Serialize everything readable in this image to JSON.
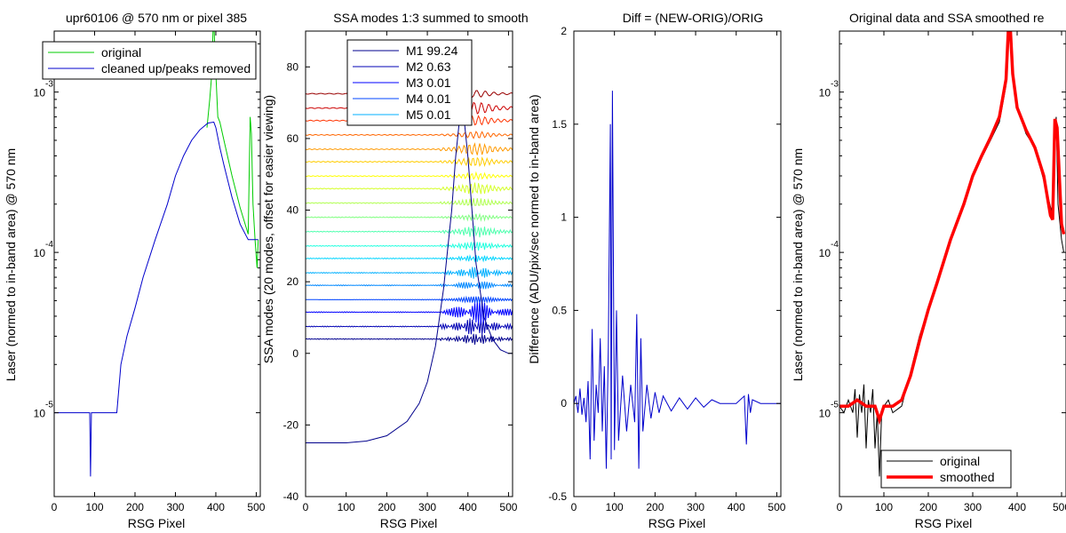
{
  "chart_data": [
    {
      "type": "line",
      "title": "upr60106 @ 570 nm or pixel 385",
      "xlabel": "RSG Pixel",
      "ylabel": "Laser (normed to in-band area) @ 570 nm",
      "xlim": [
        0,
        510
      ],
      "ylim": [
        3e-06,
        0.0024
      ],
      "yscale": "log",
      "xticks": [
        0,
        100,
        200,
        300,
        400,
        500
      ],
      "ytick_labels": [
        {
          "base": "10",
          "exp": "-5",
          "value": 1e-05
        },
        {
          "base": "10",
          "exp": "-4",
          "value": 0.0001
        },
        {
          "base": "10",
          "exp": "-3",
          "value": 0.001
        }
      ],
      "legend": {
        "position": "top-left",
        "entries": [
          "original",
          "cleaned up/peaks removed"
        ]
      },
      "series": [
        {
          "name": "original",
          "color": "#00cc00",
          "x": [
            378,
            385,
            390,
            393,
            396,
            400,
            405,
            410,
            420,
            440,
            460,
            480,
            485,
            488,
            492,
            497,
            502,
            505
          ],
          "y": [
            0.0006,
            0.0009,
            0.0013,
            0.0024,
            0.0024,
            0.0013,
            0.0007,
            0.00065,
            0.0005,
            0.0003,
            0.00019,
            0.00013,
            0.0007,
            0.00055,
            0.0002,
            0.00012,
            8e-05,
            0.00012
          ]
        },
        {
          "name": "cleaned up/peaks removed",
          "color": "#0000cc",
          "x": [
            0,
            15,
            25,
            35,
            45,
            50,
            60,
            70,
            80,
            88,
            90,
            92,
            95,
            100,
            110,
            120,
            140,
            155,
            165,
            180,
            200,
            220,
            250,
            280,
            300,
            320,
            340,
            360,
            380,
            395,
            400,
            410,
            420,
            440,
            460,
            480,
            490,
            500,
            505
          ],
          "y": [
            1e-05,
            1e-05,
            1e-05,
            1e-05,
            1e-05,
            1e-05,
            1e-05,
            1e-05,
            1e-05,
            1e-05,
            4e-06,
            1e-05,
            1e-05,
            1e-05,
            1e-05,
            1e-05,
            1e-05,
            1e-05,
            2e-05,
            3e-05,
            4.5e-05,
            7e-05,
            0.00012,
            0.0002,
            0.0003,
            0.0004,
            0.0005,
            0.00058,
            0.00064,
            0.00065,
            0.0006,
            0.00045,
            0.00035,
            0.00022,
            0.00015,
            0.00012,
            0.00012,
            0.00012,
            0.00012
          ]
        }
      ]
    },
    {
      "type": "line",
      "title": "SSA modes 1:3 summed to smooth",
      "xlabel": "RSG Pixel",
      "ylabel": "SSA modes (20 modes, offset for easier viewing)",
      "xlim": [
        0,
        510
      ],
      "ylim": [
        -40,
        90
      ],
      "xticks": [
        0,
        100,
        200,
        300,
        400,
        500
      ],
      "yticks": [
        -40,
        -20,
        0,
        20,
        40,
        60,
        80
      ],
      "legend": {
        "position": "top-center",
        "entries": [
          "M1 99.24",
          "M2 0.63",
          "M3 0.01",
          "M4 0.01",
          "M5 0.01"
        ]
      },
      "mode1": {
        "name": "M1 99.24",
        "color": "#00008b",
        "x": [
          0,
          50,
          100,
          150,
          200,
          250,
          280,
          300,
          320,
          340,
          360,
          370,
          380,
          385,
          390,
          400,
          410,
          420,
          440,
          460,
          480,
          500,
          510
        ],
        "y": [
          -25,
          -25,
          -25,
          -24.5,
          -23,
          -19,
          -14,
          -8,
          2,
          18,
          40,
          55,
          66,
          68,
          66,
          55,
          40,
          25,
          10,
          4,
          1,
          0,
          0
        ]
      },
      "mode_offsets": [
        4,
        7.5,
        11.5,
        15,
        19,
        22.5,
        26.5,
        30,
        34,
        38,
        42,
        46,
        49.5,
        53.5,
        57,
        61,
        65,
        68.5,
        72.5
      ],
      "mode_colors": [
        "#00008f",
        "#0000b5",
        "#0000ff",
        "#0044ff",
        "#0088ff",
        "#00b0ff",
        "#00d5ff",
        "#20ffdf",
        "#50ffaf",
        "#80ff80",
        "#b0ff50",
        "#d5ff2a",
        "#ffff00",
        "#ffcc00",
        "#ff9900",
        "#ff6600",
        "#ff3300",
        "#cc0000",
        "#990000"
      ]
    },
    {
      "type": "line",
      "title": "Diff = (NEW-ORIG)/ORIG",
      "xlabel": "RSG Pixel",
      "ylabel": "Difference (ADU/pix/sec normed to in-band area)",
      "xlim": [
        0,
        510
      ],
      "ylim": [
        -0.5,
        2
      ],
      "xticks": [
        0,
        100,
        200,
        300,
        400,
        500
      ],
      "yticks": [
        -0.5,
        0,
        0.5,
        1,
        1.5,
        2
      ],
      "series": [
        {
          "name": "",
          "color": "#0000cc",
          "x": [
            0,
            5,
            10,
            15,
            20,
            25,
            30,
            35,
            40,
            45,
            50,
            55,
            60,
            65,
            70,
            75,
            80,
            85,
            90,
            92,
            95,
            100,
            105,
            110,
            120,
            130,
            140,
            150,
            155,
            160,
            165,
            170,
            180,
            190,
            200,
            210,
            220,
            240,
            260,
            280,
            300,
            320,
            340,
            360,
            380,
            400,
            420,
            425,
            430,
            435,
            440,
            460,
            480,
            510
          ],
          "y": [
            0,
            0.04,
            -0.05,
            0.08,
            -0.06,
            0.03,
            -0.1,
            0.12,
            -0.3,
            0.4,
            -0.2,
            0.1,
            -0.05,
            0.35,
            -0.15,
            0.2,
            -0.35,
            0.3,
            1.5,
            -0.3,
            1.68,
            -0.25,
            0.5,
            -0.2,
            0.15,
            -0.15,
            0.1,
            -0.1,
            0.48,
            -0.35,
            0.35,
            -0.15,
            0.1,
            -0.08,
            0.06,
            -0.05,
            0.04,
            -0.04,
            0.03,
            -0.03,
            0.03,
            -0.02,
            0.02,
            0,
            0,
            0,
            0.04,
            -0.22,
            0.05,
            -0.05,
            0.02,
            0,
            0,
            0
          ]
        }
      ]
    },
    {
      "type": "line",
      "title": "Original data and SSA smoothed re",
      "xlabel": "RSG Pixel",
      "ylabel": "Laser (normed to in-band area) @ 570 nm",
      "xlim": [
        0,
        510
      ],
      "ylim": [
        3e-06,
        0.0024
      ],
      "yscale": "log",
      "xticks": [
        0,
        100,
        200,
        300,
        400,
        500
      ],
      "ytick_labels": [
        {
          "base": "10",
          "exp": "-5",
          "value": 1e-05
        },
        {
          "base": "10",
          "exp": "-4",
          "value": 0.0001
        },
        {
          "base": "10",
          "exp": "-3",
          "value": 0.001
        }
      ],
      "legend": {
        "position": "bottom-left",
        "entries": [
          "original",
          "smoothed"
        ]
      },
      "series": [
        {
          "name": "original",
          "color": "#000000",
          "x": [
            0,
            10,
            20,
            30,
            35,
            40,
            45,
            50,
            55,
            60,
            65,
            70,
            75,
            80,
            85,
            90,
            95,
            100,
            110,
            120,
            140,
            160,
            180,
            200,
            250,
            300,
            340,
            360,
            375,
            380,
            385,
            390,
            400,
            420,
            440,
            460,
            480,
            485,
            488,
            492,
            500,
            505
          ],
          "y": [
            1.1e-05,
            1e-05,
            1.2e-05,
            1e-05,
            1.4e-05,
            7e-06,
            1.3e-05,
            1e-05,
            1.5e-05,
            6e-06,
            1.2e-05,
            1e-05,
            1.4e-05,
            6e-06,
            1e-05,
            4e-06,
            1e-05,
            1.1e-05,
            1.2e-05,
            1e-05,
            1.1e-05,
            1.8e-05,
            3e-05,
            4.5e-05,
            0.00012,
            0.0003,
            0.0005,
            0.00065,
            0.0011,
            0.0024,
            0.0024,
            0.0013,
            0.0008,
            0.00055,
            0.00045,
            0.00028,
            0.00017,
            0.0006,
            0.0007,
            0.0002,
            0.00012,
            0.0001
          ]
        },
        {
          "name": "smoothed",
          "color": "#ff0000",
          "x": [
            0,
            20,
            40,
            60,
            80,
            90,
            100,
            120,
            140,
            160,
            180,
            200,
            220,
            250,
            280,
            300,
            320,
            340,
            360,
            375,
            380,
            385,
            390,
            400,
            420,
            440,
            460,
            475,
            480,
            485,
            490,
            500,
            505
          ],
          "y": [
            1.1e-05,
            1.1e-05,
            1.2e-05,
            1.1e-05,
            1.1e-05,
            9e-06,
            1.1e-05,
            1.1e-05,
            1.2e-05,
            1.7e-05,
            2.8e-05,
            4.4e-05,
            6.5e-05,
            0.00012,
            0.0002,
            0.0003,
            0.0004,
            0.00052,
            0.0007,
            0.0012,
            0.0024,
            0.0024,
            0.0013,
            0.0008,
            0.00058,
            0.00045,
            0.0003,
            0.00017,
            0.00016,
            0.00068,
            0.0006,
            0.00015,
            0.00013
          ]
        }
      ]
    }
  ]
}
